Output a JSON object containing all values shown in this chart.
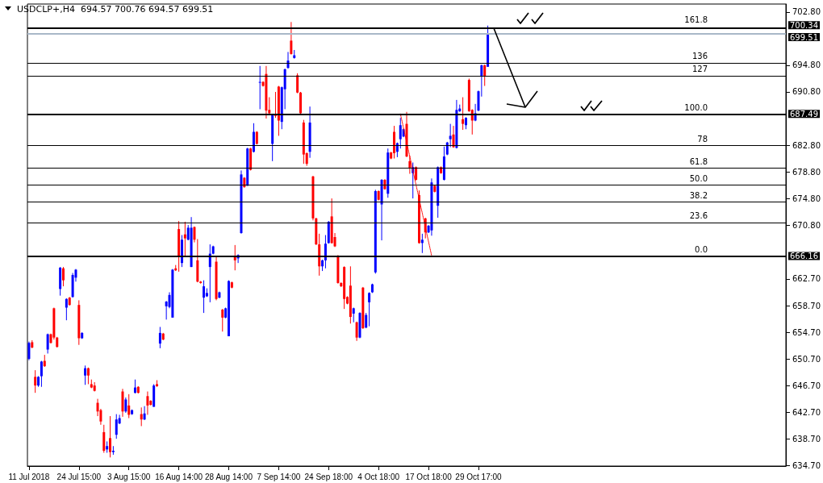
{
  "chart_data": {
    "type": "candlestick",
    "title": "USDCLP+,H4  694.57 700.76 694.57 699.51",
    "categories": [
      "11 Jul 2018",
      null,
      null,
      null,
      null,
      null,
      null,
      null,
      null,
      null,
      null,
      null,
      null,
      null,
      null,
      null,
      "24 Jul 15:00",
      null,
      null,
      null,
      null,
      null,
      null,
      null,
      null,
      null,
      null,
      null,
      null,
      null,
      null,
      null,
      "3 Aug 15:00",
      null,
      null,
      null,
      null,
      null,
      null,
      null,
      null,
      null,
      null,
      null,
      null,
      null,
      null,
      null,
      "16 Aug 14:00",
      null,
      null,
      null,
      null,
      null,
      null,
      null,
      null,
      null,
      null,
      null,
      null,
      null,
      null,
      null,
      "28 Aug 14:00",
      null,
      null,
      null,
      null,
      null,
      null,
      null,
      null,
      null,
      null,
      null,
      null,
      null,
      null,
      null,
      "7 Sep 14:00",
      null,
      null,
      null,
      null,
      null,
      null,
      null,
      null,
      null,
      null,
      null,
      null,
      null,
      null,
      null,
      "24 Sep 18:00",
      null,
      null,
      null,
      null,
      null,
      null,
      null,
      null,
      null,
      null,
      null,
      null,
      null,
      null,
      null,
      "4 Oct 18:00",
      null,
      null,
      null,
      null,
      null,
      null,
      null,
      null,
      null,
      null,
      null,
      null,
      null,
      null,
      null,
      "17 Oct 18:00",
      null,
      null,
      null,
      null,
      null,
      null,
      null,
      null,
      null,
      null,
      null,
      null,
      null,
      null,
      null,
      "29 Oct 17:00",
      null,
      null,
      null,
      null,
      null,
      null,
      null,
      null,
      null,
      null,
      null,
      null,
      null,
      null,
      null,
      null,
      null,
      null,
      null,
      null,
      null,
      null,
      null,
      null,
      null,
      null,
      null,
      null,
      null,
      null,
      null,
      null,
      null,
      null,
      null,
      null,
      null,
      null,
      null,
      null,
      null,
      null,
      null,
      null,
      null,
      null,
      null,
      null,
      null,
      null,
      null,
      null,
      null,
      null,
      null,
      null,
      null,
      null,
      null,
      null,
      null,
      null,
      null,
      null,
      null,
      null,
      null,
      null,
      null,
      null,
      null,
      null,
      null,
      null,
      null,
      null,
      null,
      null,
      null,
      null,
      null,
      null,
      null,
      null,
      null,
      null,
      null,
      null,
      null,
      null,
      null,
      null,
      null,
      null,
      null,
      null,
      null,
      null
    ],
    "ohlc": [
      [
        650.7,
        653.3,
        650.5,
        653.1
      ],
      [
        653.2,
        653.5,
        652.3,
        652.4
      ],
      [
        648.0,
        649.0,
        645.6,
        646.7
      ],
      [
        646.7,
        648.1,
        646.5,
        648.0
      ],
      [
        648.1,
        650.4,
        646.5,
        650.3
      ],
      [
        650.4,
        651.3,
        649.5,
        649.6
      ],
      [
        652.1,
        654.5,
        651.5,
        654.4
      ],
      [
        654.4,
        654.5,
        653.0,
        653.1
      ],
      [
        658.3,
        658.4,
        653.6,
        653.9
      ],
      [
        653.9,
        654.0,
        652.4,
        652.5
      ],
      [
        661.2,
        664.5,
        660.2,
        664.4
      ],
      [
        664.3,
        664.5,
        661.6,
        662.5
      ],
      [
        658.4,
        659.8,
        656.5,
        659.7
      ],
      [
        659.9,
        660.0,
        658.7,
        658.8
      ],
      [
        660.0,
        663.6,
        659.9,
        663.3
      ],
      [
        662.9,
        664.2,
        662.3,
        664.1
      ],
      [
        658.8,
        659.5,
        652.8,
        653.8
      ],
      [
        653.8,
        654.7,
        653.7,
        654.6
      ],
      [
        648.2,
        649.7,
        646.8,
        649.3
      ],
      [
        649.3,
        649.4,
        646.9,
        648.2
      ],
      [
        646.9,
        647.6,
        646.3,
        646.4
      ],
      [
        646.7,
        647.2,
        645.8,
        645.9
      ],
      [
        644.1,
        644.7,
        642.1,
        642.8
      ],
      [
        643.0,
        643.2,
        640.8,
        641.3
      ],
      [
        639.7,
        640.8,
        636.6,
        636.9
      ],
      [
        637.1,
        638.3,
        636.6,
        637.6
      ],
      [
        638.8,
        642.1,
        635.9,
        636.7
      ],
      [
        636.7,
        637.6,
        636.3,
        636.9
      ],
      [
        639.3,
        642.4,
        638.7,
        641.6
      ],
      [
        641.0,
        642.3,
        640.9,
        641.8
      ],
      [
        645.8,
        646.2,
        642.0,
        642.8
      ],
      [
        642.8,
        644.9,
        642.6,
        644.6
      ],
      [
        643.7,
        645.4,
        641.8,
        642.3
      ],
      [
        642.4,
        643.1,
        642.3,
        643.0
      ],
      [
        645.6,
        647.6,
        645.5,
        646.4
      ],
      [
        646.5,
        646.6,
        645.5,
        645.6
      ],
      [
        642.4,
        643.4,
        640.6,
        641.6
      ],
      [
        641.6,
        643.6,
        641.5,
        642.5
      ],
      [
        645.1,
        645.8,
        642.3,
        643.7
      ],
      [
        644.4,
        644.5,
        643.7,
        643.8
      ],
      [
        643.5,
        646.9,
        643.5,
        646.7
      ],
      [
        646.9,
        647.5,
        646.5,
        646.6
      ],
      [
        653.0,
        655.5,
        652.3,
        654.6
      ],
      [
        654.5,
        654.6,
        653.5,
        653.6
      ],
      [
        658.6,
        659.4,
        656.6,
        659.3
      ],
      [
        658.5,
        660.7,
        658.3,
        660.3
      ],
      [
        656.9,
        664.2,
        656.9,
        664.1
      ],
      [
        664.3,
        664.8,
        663.9,
        664.0
      ],
      [
        670.2,
        671.4,
        663.8,
        666.0
      ],
      [
        665.1,
        669.3,
        664.5,
        668.6
      ],
      [
        669.4,
        671.3,
        666.0,
        668.8
      ],
      [
        668.6,
        670.8,
        668.5,
        670.4
      ],
      [
        664.5,
        672.0,
        664.5,
        670.4
      ],
      [
        670.5,
        670.6,
        668.2,
        668.6
      ],
      [
        665.5,
        668.7,
        662.2,
        662.3
      ],
      [
        662.3,
        662.4,
        662.0,
        662.1
      ],
      [
        659.9,
        662.5,
        657.6,
        661.6
      ],
      [
        660.1,
        661.3,
        660.0,
        660.6
      ],
      [
        664.5,
        667.9,
        659.2,
        666.5
      ],
      [
        666.5,
        667.7,
        666.4,
        667.6
      ],
      [
        665.3,
        666.0,
        659.5,
        659.7
      ],
      [
        659.9,
        660.8,
        659.8,
        660.7
      ],
      [
        658.1,
        658.2,
        654.8,
        656.9
      ],
      [
        656.9,
        658.4,
        656.8,
        658.3
      ],
      [
        654.1,
        662.5,
        654.1,
        662.4
      ],
      [
        662.2,
        662.3,
        661.3,
        661.4
      ],
      [
        666.0,
        667.8,
        664.0,
        665.5
      ],
      [
        665.8,
        666.4,
        665.1,
        666.3
      ],
      [
        669.6,
        679.0,
        669.5,
        678.4
      ],
      [
        677.9,
        678.0,
        676.4,
        676.5
      ],
      [
        676.7,
        682.4,
        676.7,
        682.3
      ],
      [
        682.3,
        682.4,
        679.0,
        679.1
      ],
      [
        681.8,
        686.1,
        681.7,
        684.8
      ],
      [
        684.8,
        684.9,
        682.9,
        683.0
      ],
      [
        692.2,
        694.7,
        688.2,
        692.3
      ],
      [
        692.3,
        692.4,
        691.6,
        691.7
      ],
      [
        693.5,
        694.7,
        686.8,
        688.0
      ],
      [
        688.1,
        690.0,
        687.5,
        687.6
      ],
      [
        683.0,
        687.5,
        680.4,
        687.4
      ],
      [
        687.4,
        690.8,
        686.9,
        687.2
      ],
      [
        691.6,
        691.7,
        684.2,
        686.5
      ],
      [
        686.3,
        691.6,
        685.2,
        691.5
      ],
      [
        691.2,
        694.3,
        688.2,
        694.2
      ],
      [
        694.4,
        696.8,
        694.3,
        695.5
      ],
      [
        698.5,
        701.3,
        696.4,
        696.5
      ],
      [
        695.9,
        697.1,
        695.8,
        696.3
      ],
      [
        693.3,
        693.6,
        690.6,
        690.7
      ],
      [
        690.7,
        690.8,
        687.5,
        687.6
      ],
      [
        686.2,
        686.6,
        680.0,
        681.4
      ],
      [
        681.6,
        681.7,
        679.7,
        680.0
      ],
      [
        681.8,
        688.6,
        680.9,
        686.2
      ],
      [
        678.1,
        678.2,
        671.5,
        671.8
      ],
      [
        671.8,
        671.9,
        667.8,
        667.9
      ],
      [
        667.9,
        669.5,
        663.2,
        664.6
      ],
      [
        664.6,
        665.6,
        663.9,
        665.5
      ],
      [
        665.5,
        669.3,
        664.3,
        668.0
      ],
      [
        668.1,
        671.4,
        668.0,
        671.3
      ],
      [
        672.1,
        674.8,
        668.0,
        668.1
      ],
      [
        669.0,
        669.6,
        667.5,
        667.6
      ],
      [
        666.0,
        666.3,
        662.0,
        662.1
      ],
      [
        662.1,
        662.2,
        661.5,
        661.6
      ],
      [
        664.5,
        664.6,
        658.2,
        659.7
      ],
      [
        660.0,
        660.1,
        658.9,
        659.0
      ],
      [
        661.7,
        664.6,
        656.0,
        657.0
      ],
      [
        657.5,
        658.4,
        656.2,
        658.3
      ],
      [
        656.2,
        656.3,
        653.4,
        653.9
      ],
      [
        653.9,
        657.7,
        653.8,
        657.6
      ],
      [
        661.4,
        661.5,
        655.2,
        655.3
      ],
      [
        655.4,
        657.6,
        655.3,
        657.3
      ],
      [
        659.2,
        660.7,
        655.6,
        660.6
      ],
      [
        660.7,
        662.0,
        660.6,
        661.9
      ],
      [
        663.7,
        676.1,
        663.5,
        675.9
      ],
      [
        675.9,
        676.0,
        674.5,
        674.6
      ],
      [
        673.9,
        677.7,
        668.5,
        677.6
      ],
      [
        677.6,
        677.7,
        676.1,
        676.2
      ],
      [
        675.5,
        682.3,
        674.9,
        681.7
      ],
      [
        681.7,
        681.8,
        680.7,
        680.8
      ],
      [
        684.8,
        685.7,
        680.8,
        681.6
      ],
      [
        681.8,
        683.2,
        681.0,
        683.1
      ],
      [
        683.7,
        686.9,
        682.3,
        685.8
      ],
      [
        684.1,
        685.3,
        684.0,
        685.2
      ],
      [
        686.0,
        687.8,
        681.0,
        681.1
      ],
      [
        680.4,
        681.2,
        678.5,
        679.4
      ],
      [
        678.6,
        680.2,
        674.8,
        679.5
      ],
      [
        679.5,
        679.6,
        677.5,
        677.6
      ],
      [
        675.3,
        676.0,
        668.0,
        668.1
      ],
      [
        668.1,
        669.5,
        666.6,
        668.6
      ],
      [
        671.8,
        671.9,
        668.8,
        669.7
      ],
      [
        669.7,
        670.8,
        669.6,
        670.7
      ],
      [
        670.0,
        677.8,
        669.2,
        677.2
      ],
      [
        676.7,
        676.8,
        675.7,
        675.8
      ],
      [
        673.7,
        679.6,
        671.9,
        679.5
      ],
      [
        679.5,
        679.6,
        678.5,
        678.6
      ],
      [
        677.6,
        682.6,
        677.5,
        681.1
      ],
      [
        681.4,
        683.3,
        681.3,
        683.2
      ],
      [
        683.7,
        686.0,
        682.5,
        684.2
      ],
      [
        684.4,
        685.7,
        682.4,
        682.5
      ],
      [
        682.4,
        689.6,
        682.3,
        688.1
      ],
      [
        687.9,
        688.9,
        687.8,
        688.3
      ],
      [
        686.7,
        690.0,
        685.1,
        686.0
      ],
      [
        685.8,
        687.0,
        685.2,
        686.9
      ],
      [
        692.6,
        692.8,
        687.8,
        687.9
      ],
      [
        688.1,
        688.2,
        684.4,
        686.5
      ],
      [
        686.5,
        689.0,
        686.4,
        687.6
      ],
      [
        688.0,
        691.0,
        687.9,
        690.9
      ],
      [
        693.1,
        694.9,
        690.1,
        694.8
      ],
      [
        694.8,
        694.9,
        691.7,
        693.1
      ],
      [
        694.57,
        700.76,
        694.57,
        699.51
      ],
      null,
      null,
      null,
      null,
      null,
      null,
      null,
      null,
      null,
      null,
      null,
      null,
      null,
      null,
      null,
      null,
      null,
      null,
      null,
      null,
      null,
      null,
      null,
      null,
      null,
      null,
      null,
      null,
      null,
      null,
      null,
      null,
      null,
      null,
      null,
      null,
      null,
      null,
      null,
      null,
      null,
      null,
      null,
      null,
      null,
      null,
      null,
      null,
      null,
      null,
      null,
      null,
      null,
      null,
      null,
      null,
      null,
      null,
      null,
      null,
      null,
      null,
      null,
      null,
      null,
      null,
      null,
      null,
      null,
      null,
      null,
      null,
      null,
      null,
      null,
      null,
      null,
      null,
      null,
      null,
      null,
      null,
      null,
      null,
      null,
      null,
      null,
      null,
      null,
      null,
      null,
      null,
      null,
      null,
      null
    ],
    "series": [
      {
        "type": "line",
        "color": "#ff0000",
        "line_style": "dotted",
        "marker": "none",
        "values": [
          null,
          null,
          null,
          null,
          null,
          null,
          null,
          null,
          null,
          null,
          null,
          null,
          null,
          null,
          null,
          null,
          null,
          null,
          null,
          null,
          null,
          null,
          null,
          null,
          null,
          null,
          null,
          null,
          null,
          null,
          null,
          null,
          null,
          null,
          null,
          null,
          null,
          null,
          null,
          null,
          null,
          null,
          null,
          null,
          null,
          null,
          null,
          null,
          null,
          null,
          null,
          null,
          null,
          null,
          null,
          null,
          null,
          null,
          null,
          null,
          null,
          null,
          null,
          null,
          null,
          null,
          null,
          null,
          null,
          null,
          null,
          null,
          null,
          null,
          null,
          null,
          null,
          null,
          null,
          null,
          null,
          null,
          null,
          null,
          null,
          null,
          null,
          null,
          null,
          null,
          null,
          null,
          null,
          null,
          null,
          null,
          null,
          null,
          null,
          null,
          null,
          null,
          null,
          null,
          null,
          null,
          null,
          null,
          null,
          null,
          null,
          null,
          null,
          null,
          null,
          null,
          null,
          null,
          null,
          687.5,
          null,
          null,
          null,
          null,
          null,
          null,
          null,
          null,
          null,
          666.2,
          null,
          null,
          null,
          null,
          null,
          null,
          null,
          null,
          null,
          null,
          null,
          null,
          null,
          null,
          null,
          null,
          null,
          null,
          null,
          null,
          null,
          null,
          null,
          null,
          null,
          null,
          null,
          null,
          null,
          null,
          null,
          null,
          null,
          null,
          null,
          null,
          null,
          null,
          null,
          null,
          null,
          null,
          null,
          null,
          null,
          null,
          null,
          null,
          null,
          null,
          null,
          null,
          null,
          null,
          null,
          null,
          null,
          null,
          null,
          null,
          null,
          null,
          null,
          null,
          null,
          null,
          null,
          null,
          null,
          null,
          null,
          null,
          null,
          null,
          null,
          null,
          null,
          null,
          null,
          null,
          null,
          null,
          null,
          null,
          null,
          null,
          null,
          null,
          null,
          null,
          null,
          null,
          null,
          null,
          null,
          null,
          null,
          null,
          null,
          null,
          null,
          null,
          null,
          null,
          null,
          null,
          null,
          null,
          null,
          null,
          null,
          null,
          null
        ]
      }
    ],
    "ylim": [
      634.6,
      704.0
    ],
    "yticks": [
      {
        "value": 634.7,
        "label": "634.70"
      },
      {
        "value": 638.7,
        "label": "638.70"
      },
      {
        "value": 642.7,
        "label": "642.70"
      },
      {
        "value": 646.7,
        "label": "646.70"
      },
      {
        "value": 650.7,
        "label": "650.70"
      },
      {
        "value": 654.7,
        "label": "654.70"
      },
      {
        "value": 658.7,
        "label": "658.70"
      },
      {
        "value": 662.7,
        "label": "662.70"
      },
      {
        "value": 670.8,
        "label": "670.80"
      },
      {
        "value": 674.8,
        "label": "674.80"
      },
      {
        "value": 678.8,
        "label": "678.80"
      },
      {
        "value": 682.8,
        "label": "682.80"
      },
      {
        "value": 690.8,
        "label": "690.80"
      },
      {
        "value": 694.8,
        "label": "694.80"
      },
      {
        "value": 702.8,
        "label": "702.80"
      }
    ],
    "ref_lines": [
      {
        "axis": "y",
        "value": 700.34,
        "label": "700.34",
        "color": "#000000"
      },
      {
        "axis": "y",
        "value": 699.51,
        "label": "699.51",
        "color": "#a9b8c8"
      },
      {
        "axis": "y",
        "value": 687.49,
        "label": "687.49",
        "color": "#000000"
      },
      {
        "axis": "y",
        "value": 666.16,
        "label": "666.16",
        "color": "#000000"
      },
      {
        "axis": "y",
        "value": 695.17,
        "label": null,
        "color": "#000000"
      },
      {
        "axis": "y",
        "value": 693.25,
        "label": null,
        "color": "#000000"
      },
      {
        "axis": "y",
        "value": 682.8,
        "label": null,
        "color": "#000000"
      },
      {
        "axis": "y",
        "value": 679.34,
        "label": null,
        "color": "#000000"
      },
      {
        "axis": "y",
        "value": 676.83,
        "label": null,
        "color": "#000000"
      },
      {
        "axis": "y",
        "value": 674.31,
        "label": null,
        "color": "#000000"
      },
      {
        "axis": "y",
        "value": 671.19,
        "label": null,
        "color": "#000000"
      }
    ],
    "annotations": [
      {
        "text": "161.8",
        "y": 700.67
      },
      {
        "text": "136",
        "y": 695.17
      },
      {
        "text": "127",
        "y": 693.25
      },
      {
        "text": "100.0",
        "y": 687.49
      },
      {
        "text": "78",
        "y": 682.8
      },
      {
        "text": "61.8",
        "y": 679.34
      },
      {
        "text": "50.0",
        "y": 676.83
      },
      {
        "text": "38.2",
        "y": 674.31
      },
      {
        "text": "23.6",
        "y": 671.19
      },
      {
        "text": "0.0",
        "y": 666.16
      }
    ]
  }
}
